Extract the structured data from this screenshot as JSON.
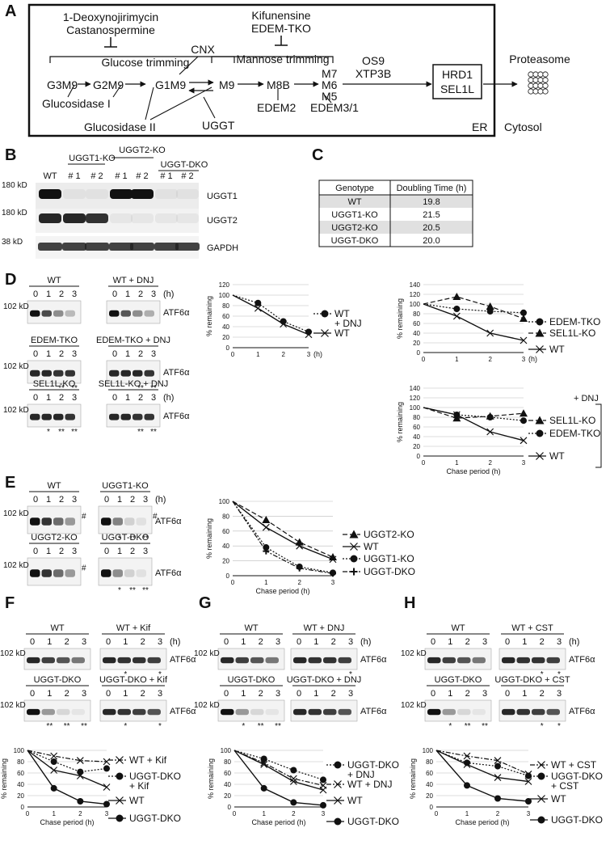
{
  "panelA": {
    "label": "A",
    "inhib1": "1-Deoxynojirimycin",
    "inhib2": "Castanospermine",
    "inhib3": "Kifunensine",
    "inhib4": "EDEM-TKO",
    "glucose": "Glucose trimming",
    "mannose": "Mannose trimming",
    "cnx": "CNX",
    "g3m9": "G3M9",
    "g2m9": "G2M9",
    "g1m9": "G1M9",
    "m9": "M9",
    "m8b": "M8B",
    "m7": "M7",
    "m6": "M6",
    "m5": "M5",
    "os9": "OS9",
    "xtp3b": "XTP3B",
    "hrd1": "HRD1",
    "sel1l": "SEL1L",
    "proteasome": "Proteasome",
    "gluI": "Glucosidase I",
    "gluII": "Glucosidase II",
    "uggt": "UGGT",
    "edem2": "EDEM2",
    "edem31": "EDEM3/1",
    "er": "ER",
    "cytosol": "Cytosol"
  },
  "panelB": {
    "label": "B",
    "groups": [
      "UGGT1-KO",
      "UGGT2-KO",
      "UGGT-DKO"
    ],
    "lanes": [
      "WT",
      "# 1",
      "# 2",
      "# 1",
      "# 2",
      "# 1",
      "# 2"
    ],
    "kd1": "180 kD",
    "kd2": "180 kD",
    "kd3": "38 kD",
    "b1": "UGGT1",
    "b2": "UGGT2",
    "b3": "GAPDH"
  },
  "panelC": {
    "label": "C",
    "headers": [
      "Genotype",
      "Doubling Time (h)"
    ],
    "rows": [
      [
        "WT",
        "19.8"
      ],
      [
        "UGGT1-KO",
        "21.5"
      ],
      [
        "UGGT2-KO",
        "20.5"
      ],
      [
        "UGGT-DKO",
        "20.0"
      ]
    ]
  },
  "panelD": {
    "label": "D",
    "blots": [
      "WT",
      "WT + DNJ",
      "EDEM-TKO",
      "EDEM-TKO + DNJ",
      "SEL1L-KO",
      "SEL1L-KO + DNJ"
    ],
    "times": [
      "0",
      "1",
      "2",
      "3"
    ],
    "h": "(h)",
    "kd": "102 kD",
    "protein": "ATF6α",
    "stars": [
      "**",
      "**",
      "**",
      "**",
      "*",
      "**",
      "**",
      "**",
      "**"
    ],
    "ylabel": "% remaining",
    "xlabel": "Chase period (h)",
    "dnj": "+ DNJ"
  },
  "panelE": {
    "label": "E",
    "blots": [
      "WT",
      "UGGT1-KO",
      "UGGT2-KO",
      "UGGT-DKO"
    ],
    "hash": "#",
    "stars": [
      "*",
      "**",
      "**",
      "*",
      "**",
      "**"
    ]
  },
  "panelF": {
    "label": "F",
    "blots": [
      "WT",
      "WT + Kif",
      "UGGT-DKO",
      "UGGT-DKO + Kif"
    ],
    "stars": [
      "*",
      "*",
      "**",
      "**",
      "**",
      "*",
      "*"
    ]
  },
  "panelG": {
    "label": "G",
    "blots": [
      "WT",
      "WT + DNJ",
      "UGGT-DKO",
      "UGGT-DKO + DNJ"
    ],
    "stars": [
      "*",
      "*",
      "**",
      "**"
    ]
  },
  "panelH": {
    "label": "H",
    "blots": [
      "WT",
      "WT + CST",
      "UGGT-DKO",
      "UGGT-DKO + CST"
    ],
    "stars": [
      "*",
      "*",
      "*",
      "**",
      "**",
      "*",
      "*"
    ]
  },
  "chart_data": [
    {
      "type": "line",
      "panel": "D-left",
      "x": [
        0,
        1,
        2,
        3
      ],
      "ylim": [
        0,
        120
      ],
      "yticks": [
        0,
        20,
        40,
        60,
        80,
        100,
        120
      ],
      "ylabel": "% remaining",
      "xlabel": "(h)",
      "series": [
        {
          "name": "WT + DNJ",
          "values": [
            100,
            85,
            50,
            30
          ],
          "style": "dotted",
          "marker": "circle"
        },
        {
          "name": "WT",
          "values": [
            100,
            75,
            45,
            25
          ],
          "style": "solid",
          "marker": "x"
        }
      ]
    },
    {
      "type": "line",
      "panel": "D-right-top",
      "x": [
        0,
        1,
        2,
        3
      ],
      "ylim": [
        0,
        140
      ],
      "yticks": [
        0,
        20,
        40,
        60,
        80,
        100,
        120,
        140
      ],
      "ylabel": "% remaining",
      "xlabel": "(h)",
      "series": [
        {
          "name": "EDEM-TKO",
          "values": [
            100,
            90,
            85,
            82
          ],
          "style": "dotted",
          "marker": "circle"
        },
        {
          "name": "SEL1L-KO",
          "values": [
            100,
            115,
            95,
            70
          ],
          "style": "dashed",
          "marker": "triangle"
        },
        {
          "name": "WT",
          "values": [
            100,
            75,
            40,
            25
          ],
          "style": "solid",
          "marker": "x"
        }
      ]
    },
    {
      "type": "line",
      "panel": "D-right-bottom",
      "x": [
        0,
        1,
        2,
        3
      ],
      "ylim": [
        0,
        140
      ],
      "yticks": [
        0,
        20,
        40,
        60,
        80,
        100,
        120,
        140
      ],
      "ylabel": "% remaining",
      "xlabel": "Chase period (h)",
      "series": [
        {
          "name": "SEL1L-KO",
          "values": [
            100,
            78,
            82,
            88
          ],
          "style": "dashed",
          "marker": "triangle"
        },
        {
          "name": "EDEM-TKO",
          "values": [
            100,
            85,
            80,
            73
          ],
          "style": "dotted",
          "marker": "circle"
        },
        {
          "name": "WT",
          "values": [
            100,
            85,
            50,
            32
          ],
          "style": "solid",
          "marker": "x"
        }
      ]
    },
    {
      "type": "line",
      "panel": "E",
      "x": [
        0,
        1,
        2,
        3
      ],
      "ylim": [
        0,
        100
      ],
      "yticks": [
        0,
        20,
        40,
        60,
        80,
        100
      ],
      "ylabel": "% remaining",
      "xlabel": "Chase period (h)",
      "series": [
        {
          "name": "UGGT2-KO",
          "values": [
            100,
            75,
            45,
            25
          ],
          "style": "dashed",
          "marker": "triangle"
        },
        {
          "name": "WT",
          "values": [
            100,
            65,
            40,
            22
          ],
          "style": "solid",
          "marker": "x"
        },
        {
          "name": "UGGT1-KO",
          "values": [
            100,
            38,
            12,
            4
          ],
          "style": "dotted",
          "marker": "circle"
        },
        {
          "name": "UGGT-DKO",
          "values": [
            100,
            33,
            10,
            3
          ],
          "style": "dashdot",
          "marker": "plus"
        }
      ]
    },
    {
      "type": "line",
      "panel": "F",
      "x": [
        0,
        1,
        2,
        3
      ],
      "ylim": [
        0,
        100
      ],
      "yticks": [
        0,
        20,
        40,
        60,
        80,
        100
      ],
      "ylabel": "% remaining",
      "xlabel": "Chase period (h)",
      "series": [
        {
          "name": "WT + Kif",
          "values": [
            100,
            90,
            82,
            80
          ],
          "style": "dashdot",
          "marker": "x"
        },
        {
          "name": "UGGT-DKO + Kif",
          "values": [
            100,
            80,
            62,
            68
          ],
          "style": "dotted",
          "marker": "circle"
        },
        {
          "name": "WT",
          "values": [
            100,
            65,
            55,
            35
          ],
          "style": "solid",
          "marker": "x"
        },
        {
          "name": "UGGT-DKO",
          "values": [
            100,
            33,
            10,
            5
          ],
          "style": "solid",
          "marker": "circle"
        }
      ]
    },
    {
      "type": "line",
      "panel": "G",
      "x": [
        0,
        1,
        2,
        3
      ],
      "ylim": [
        0,
        100
      ],
      "yticks": [
        0,
        20,
        40,
        60,
        80,
        100
      ],
      "ylabel": "% remaining",
      "xlabel": "Chase period (h)",
      "series": [
        {
          "name": "UGGT-DKO + DNJ",
          "values": [
            100,
            85,
            65,
            48
          ],
          "style": "dotted",
          "marker": "circle"
        },
        {
          "name": "WT + DNJ",
          "values": [
            100,
            78,
            50,
            38
          ],
          "style": "dashdot",
          "marker": "x"
        },
        {
          "name": "WT",
          "values": [
            100,
            75,
            45,
            30
          ],
          "style": "solid",
          "marker": "x"
        },
        {
          "name": "UGGT-DKO",
          "values": [
            100,
            33,
            8,
            3
          ],
          "style": "solid",
          "marker": "circle"
        }
      ]
    },
    {
      "type": "line",
      "panel": "H",
      "x": [
        0,
        1,
        2,
        3
      ],
      "ylim": [
        0,
        100
      ],
      "yticks": [
        0,
        20,
        40,
        60,
        80,
        100
      ],
      "ylabel": "% remaining",
      "xlabel": "Chase period (h)",
      "series": [
        {
          "name": "WT + CST",
          "values": [
            100,
            90,
            82,
            58
          ],
          "style": "dashdot",
          "marker": "x"
        },
        {
          "name": "UGGT-DKO + CST",
          "values": [
            100,
            78,
            72,
            55
          ],
          "style": "dotted",
          "marker": "circle"
        },
        {
          "name": "WT",
          "values": [
            100,
            75,
            52,
            45
          ],
          "style": "solid",
          "marker": "x"
        },
        {
          "name": "UGGT-DKO",
          "values": [
            100,
            38,
            15,
            10
          ],
          "style": "solid",
          "marker": "circle"
        }
      ]
    }
  ]
}
